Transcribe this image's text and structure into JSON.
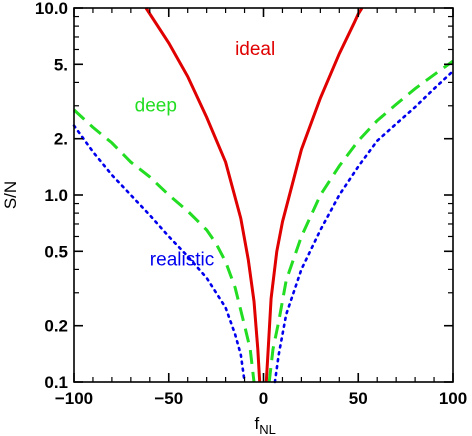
{
  "chart_data": {
    "type": "line",
    "title": "",
    "xlabel": {
      "main": "f",
      "sub": "NL"
    },
    "ylabel": "S/N",
    "xlim": [
      -100,
      100
    ],
    "ylim": [
      0.1,
      10.0
    ],
    "yscale": "log",
    "x_ticks": [
      -100,
      -50,
      0,
      50,
      100
    ],
    "x_tick_labels": [
      "−100",
      "−50",
      "0",
      "50",
      "100"
    ],
    "y_ticks": [
      0.1,
      0.2,
      0.5,
      1.0,
      2.0,
      5.0,
      10.0
    ],
    "y_tick_labels": [
      "0.1",
      "0.2",
      "0.5",
      "1.0",
      "2.",
      "5.",
      "10.0"
    ],
    "grid": false,
    "legend": "inline labels",
    "series": [
      {
        "name": "ideal",
        "color": "#e00000",
        "dash": "solid",
        "label_pos": [
          -15,
          5.6
        ],
        "points": [
          [
            -62,
            10
          ],
          [
            -50,
            6.5
          ],
          [
            -40,
            4.3
          ],
          [
            -30,
            2.6
          ],
          [
            -20,
            1.5
          ],
          [
            -12,
            0.75
          ],
          [
            -8,
            0.45
          ],
          [
            -5,
            0.27
          ],
          [
            -3,
            0.15
          ],
          [
            -2,
            0.1
          ],
          null,
          [
            1.5,
            0.1
          ],
          [
            2.5,
            0.15
          ],
          [
            4,
            0.28
          ],
          [
            7,
            0.5
          ],
          [
            10,
            0.72
          ],
          [
            20,
            1.75
          ],
          [
            30,
            3.3
          ],
          [
            40,
            5.7
          ],
          [
            48,
            8.4
          ],
          [
            50,
            9.3
          ],
          [
            52,
            10
          ]
        ]
      },
      {
        "name": "deep",
        "color": "#22dd22",
        "dash": "dashed",
        "label_pos": [
          -68,
          2.8
        ],
        "points": [
          [
            -100,
            2.85
          ],
          [
            -90,
            2.3
          ],
          [
            -80,
            1.9
          ],
          [
            -70,
            1.5
          ],
          [
            -60,
            1.25
          ],
          [
            -50,
            1.0
          ],
          [
            -40,
            0.82
          ],
          [
            -30,
            0.65
          ],
          [
            -25,
            0.55
          ],
          [
            -20,
            0.44
          ],
          [
            -15,
            0.32
          ],
          [
            -10,
            0.2
          ],
          [
            -7,
            0.15
          ],
          [
            -5,
            0.1
          ],
          null,
          [
            3,
            0.1
          ],
          [
            5,
            0.15
          ],
          [
            8,
            0.21
          ],
          [
            12,
            0.35
          ],
          [
            20,
            0.6
          ],
          [
            30,
            1.0
          ],
          [
            40,
            1.43
          ],
          [
            50,
            1.95
          ],
          [
            60,
            2.5
          ],
          [
            70,
            3.05
          ],
          [
            80,
            3.7
          ],
          [
            90,
            4.4
          ],
          [
            100,
            5.2
          ]
        ]
      },
      {
        "name": "realistic",
        "color": "#0000ee",
        "dash": "dotted",
        "label_pos": [
          -60,
          0.42
        ],
        "points": [
          [
            -100,
            2.35
          ],
          [
            -90,
            1.7
          ],
          [
            -80,
            1.28
          ],
          [
            -70,
            1.0
          ],
          [
            -60,
            0.78
          ],
          [
            -50,
            0.6
          ],
          [
            -40,
            0.47
          ],
          [
            -30,
            0.36
          ],
          [
            -20,
            0.25
          ],
          [
            -15,
            0.18
          ],
          [
            -12,
            0.14
          ],
          [
            -10,
            0.1
          ],
          null,
          [
            6,
            0.1
          ],
          [
            8,
            0.14
          ],
          [
            12,
            0.23
          ],
          [
            20,
            0.4
          ],
          [
            30,
            0.65
          ],
          [
            40,
            1.0
          ],
          [
            50,
            1.42
          ],
          [
            60,
            1.95
          ],
          [
            70,
            2.4
          ],
          [
            80,
            2.95
          ],
          [
            90,
            3.7
          ],
          [
            100,
            4.6
          ]
        ]
      }
    ]
  }
}
